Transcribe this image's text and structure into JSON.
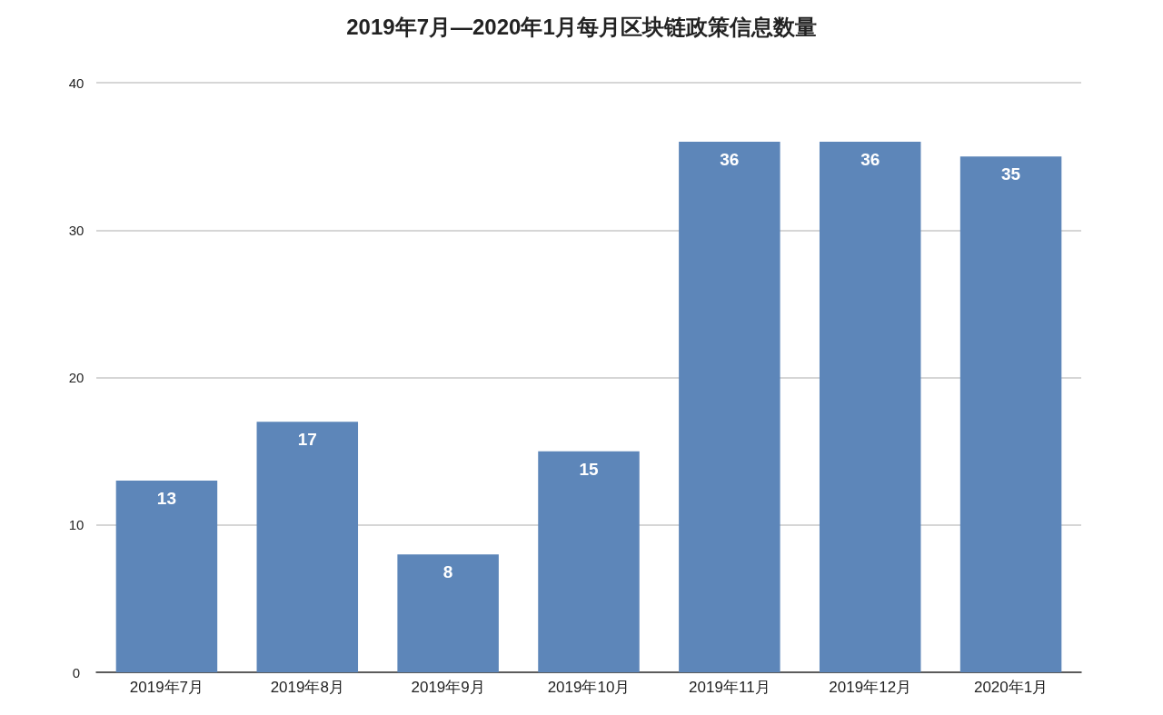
{
  "chart_data": {
    "type": "bar",
    "title": "2019年7月—2020年1月每月区块链政策信息数量",
    "categories": [
      "2019年7月",
      "2019年8月",
      "2019年9月",
      "2019年10月",
      "2019年11月",
      "2019年12月",
      "2020年1月"
    ],
    "values": [
      13,
      17,
      8,
      15,
      36,
      36,
      35
    ],
    "color": "#5d86b9",
    "ylim": [
      0,
      40
    ],
    "yticks": [
      0,
      10,
      20,
      30,
      40
    ],
    "grid": "y",
    "data_labels": true
  }
}
